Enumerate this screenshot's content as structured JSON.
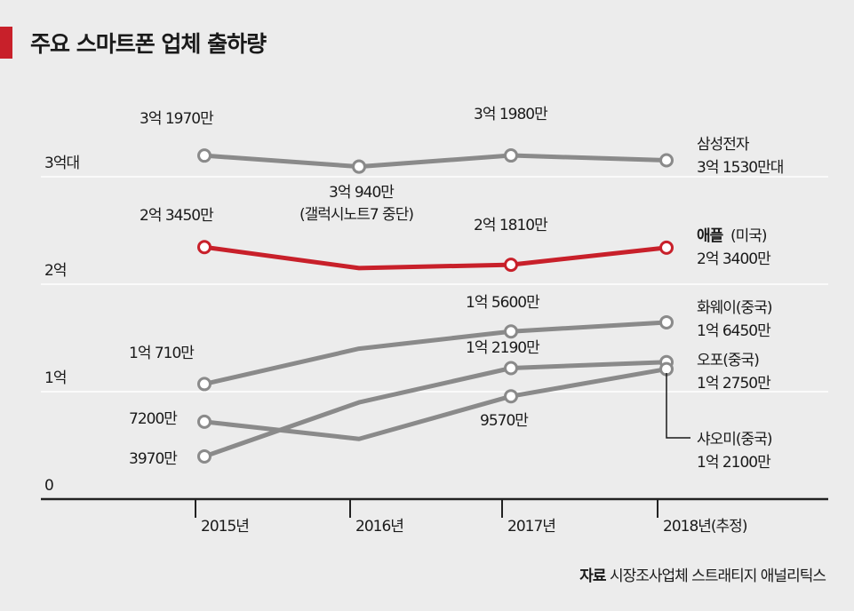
{
  "title": "주요 스마트폰 업체 출하량",
  "source": {
    "label": "자료",
    "text": "시장조사업체 스트래티지 애널리틱스"
  },
  "chart_data": {
    "type": "line",
    "title": "주요 스마트폰 업체 출하량",
    "x": [
      "2015년",
      "2016년",
      "2017년",
      "2018년(추정)"
    ],
    "ylim": [
      0,
      31500
    ],
    "y_unit": "만 대",
    "y_ticks": [
      {
        "value": 0,
        "label": "0"
      },
      {
        "value": 10000,
        "label": "1억"
      },
      {
        "value": 20000,
        "label": "2억"
      },
      {
        "value": 30000,
        "label": "3억대"
      }
    ],
    "grid": true,
    "series": [
      {
        "name": "삼성전자",
        "values": [
          31970,
          30940,
          31980,
          31530
        ],
        "color": "#8a8a8a",
        "point_labels": [
          "3억 1970만",
          "3억 940만|(갤럭시노트7 중단)",
          "3억 1980만",
          null
        ],
        "end_label": [
          "삼성전자",
          "3억 1530만대"
        ]
      },
      {
        "name": "애플(미국)",
        "values": [
          23450,
          21500,
          21810,
          23400
        ],
        "color": "#c8202a",
        "point_labels": [
          "2억 3450만",
          null,
          "2억 1810만",
          null
        ],
        "end_label": [
          "애플",
          "(미국)",
          "2억 3400만"
        ]
      },
      {
        "name": "화웨이(중국)",
        "values": [
          10710,
          14000,
          15600,
          16450
        ],
        "color": "#8a8a8a",
        "point_labels": [
          "1억 710만",
          null,
          "1억 5600만",
          null
        ],
        "end_label": [
          "화웨이(중국)",
          "1억 6450만"
        ]
      },
      {
        "name": "오포(중국)",
        "values": [
          3970,
          9000,
          12190,
          12750
        ],
        "color": "#8a8a8a",
        "point_labels": [
          "3970만",
          null,
          "1억 2190만",
          null
        ],
        "end_label": [
          "오포(중국)",
          "1억 2750만"
        ]
      },
      {
        "name": "샤오미(중국)",
        "values": [
          7200,
          5600,
          9570,
          12100
        ],
        "color": "#8a8a8a",
        "point_labels": [
          "7200만",
          null,
          "9570만",
          null
        ],
        "end_label": [
          "샤오미(중국)",
          "1억 2100만"
        ]
      }
    ]
  }
}
